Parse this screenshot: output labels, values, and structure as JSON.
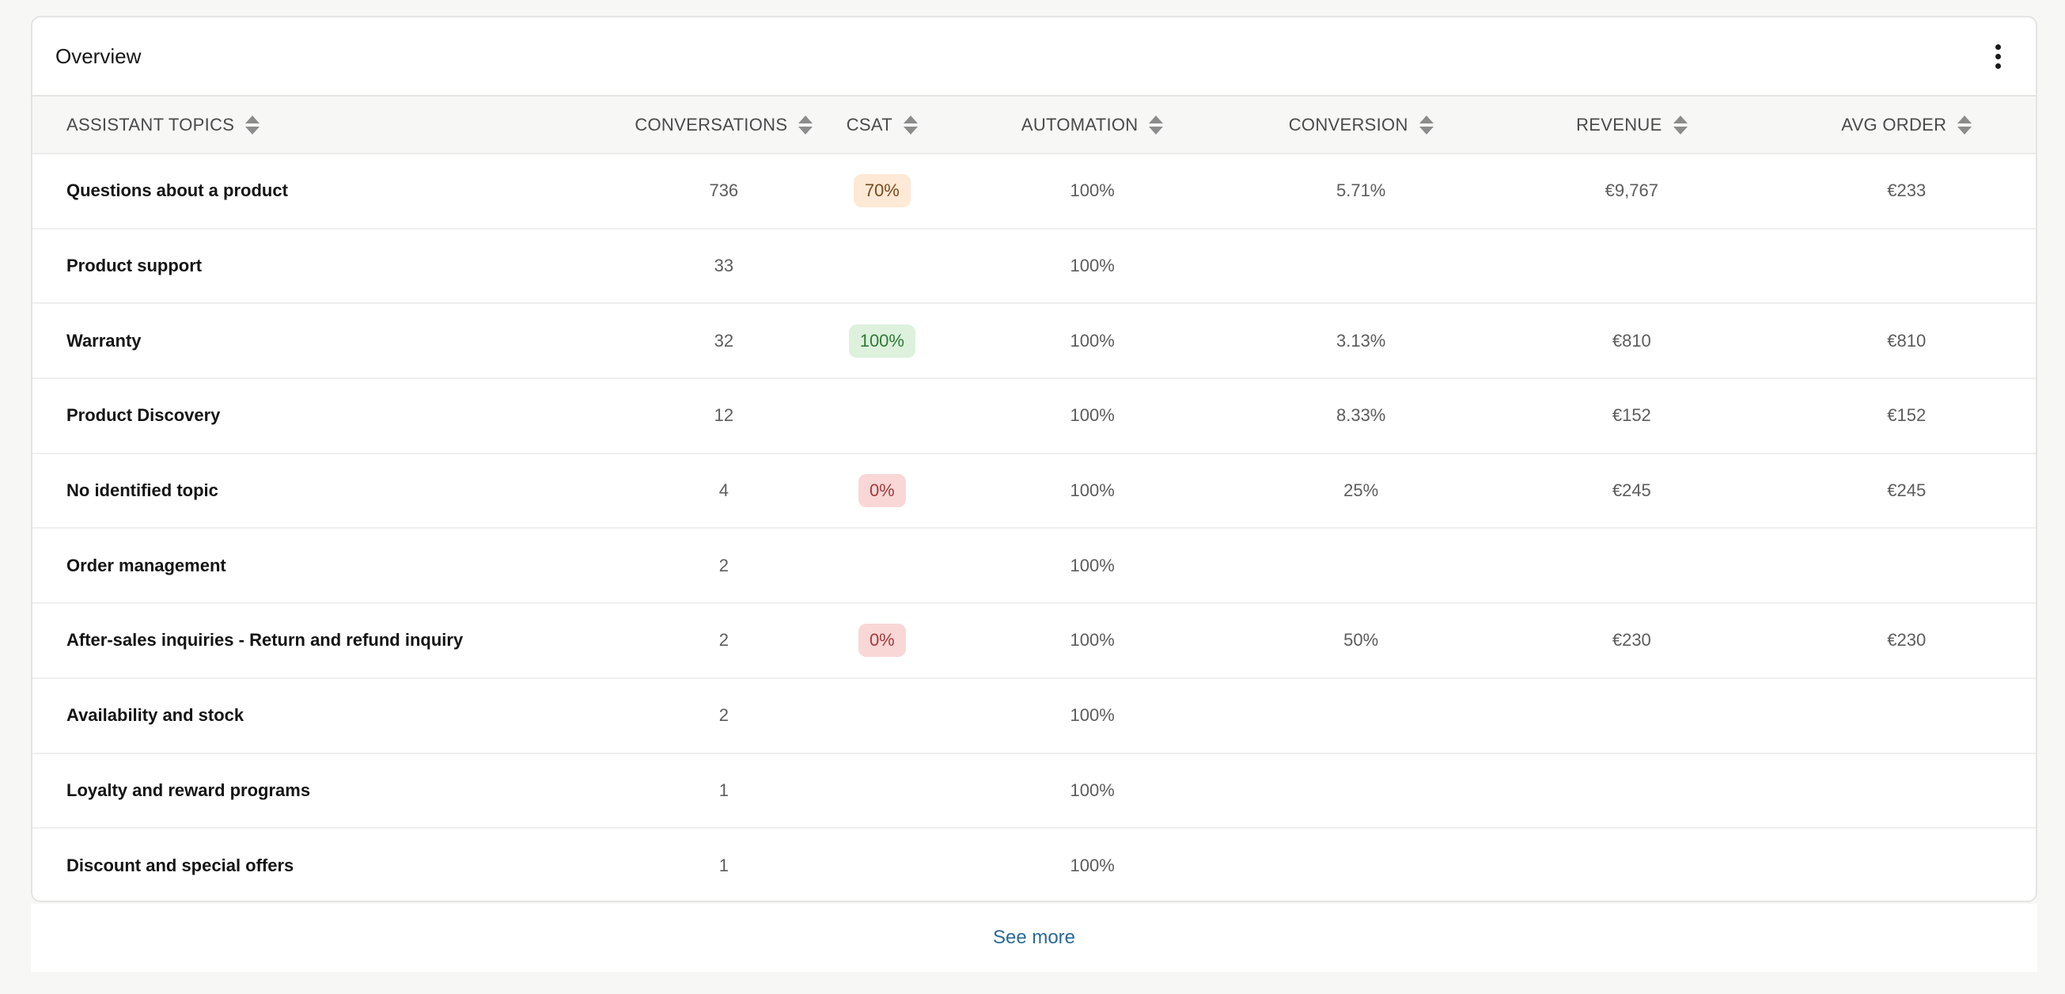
{
  "card": {
    "title": "Overview",
    "menu_icon": "kebab-vertical-icon"
  },
  "table": {
    "columns": [
      {
        "label": "ASSISTANT TOPICS",
        "sort_icon": "sort-icon"
      },
      {
        "label": "CONVERSATIONS",
        "sort_icon": "sort-icon"
      },
      {
        "label": "CSAT",
        "sort_icon": "sort-icon"
      },
      {
        "label": "AUTOMATION",
        "sort_icon": "sort-icon"
      },
      {
        "label": "CONVERSION",
        "sort_icon": "sort-icon"
      },
      {
        "label": "REVENUE",
        "sort_icon": "sort-icon"
      },
      {
        "label": "AVG ORDER",
        "sort_icon": "sort-icon"
      }
    ],
    "rows": [
      {
        "topic": "Questions about a product",
        "conversations": "736",
        "csat": "70%",
        "csat_status": "neutral",
        "automation": "100%",
        "conversion": "5.71%",
        "revenue": "€9,767",
        "avg_order": "€233"
      },
      {
        "topic": "Product support",
        "conversations": "33",
        "csat": "",
        "csat_status": "",
        "automation": "100%",
        "conversion": "",
        "revenue": "",
        "avg_order": ""
      },
      {
        "topic": "Warranty",
        "conversations": "32",
        "csat": "100%",
        "csat_status": "good",
        "automation": "100%",
        "conversion": "3.13%",
        "revenue": "€810",
        "avg_order": "€810"
      },
      {
        "topic": "Product Discovery",
        "conversations": "12",
        "csat": "",
        "csat_status": "",
        "automation": "100%",
        "conversion": "8.33%",
        "revenue": "€152",
        "avg_order": "€152"
      },
      {
        "topic": "No identified topic",
        "conversations": "4",
        "csat": "0%",
        "csat_status": "bad",
        "automation": "100%",
        "conversion": "25%",
        "revenue": "€245",
        "avg_order": "€245"
      },
      {
        "topic": "Order management",
        "conversations": "2",
        "csat": "",
        "csat_status": "",
        "automation": "100%",
        "conversion": "",
        "revenue": "",
        "avg_order": ""
      },
      {
        "topic": "After-sales inquiries - Return and refund inquiry",
        "conversations": "2",
        "csat": "0%",
        "csat_status": "bad",
        "automation": "100%",
        "conversion": "50%",
        "revenue": "€230",
        "avg_order": "€230"
      },
      {
        "topic": "Availability and stock",
        "conversations": "2",
        "csat": "",
        "csat_status": "",
        "automation": "100%",
        "conversion": "",
        "revenue": "",
        "avg_order": ""
      },
      {
        "topic": "Loyalty and reward programs",
        "conversations": "1",
        "csat": "",
        "csat_status": "",
        "automation": "100%",
        "conversion": "",
        "revenue": "",
        "avg_order": ""
      },
      {
        "topic": "Discount and special offers",
        "conversations": "1",
        "csat": "",
        "csat_status": "",
        "automation": "100%",
        "conversion": "",
        "revenue": "",
        "avg_order": ""
      }
    ]
  },
  "footer": {
    "see_more_label": "See more"
  },
  "colors": {
    "csat_neutral_bg": "#fde9d5",
    "csat_good_bg": "#ddf1dd",
    "csat_bad_bg": "#f9d7d7",
    "link": "#2a6a9a"
  }
}
